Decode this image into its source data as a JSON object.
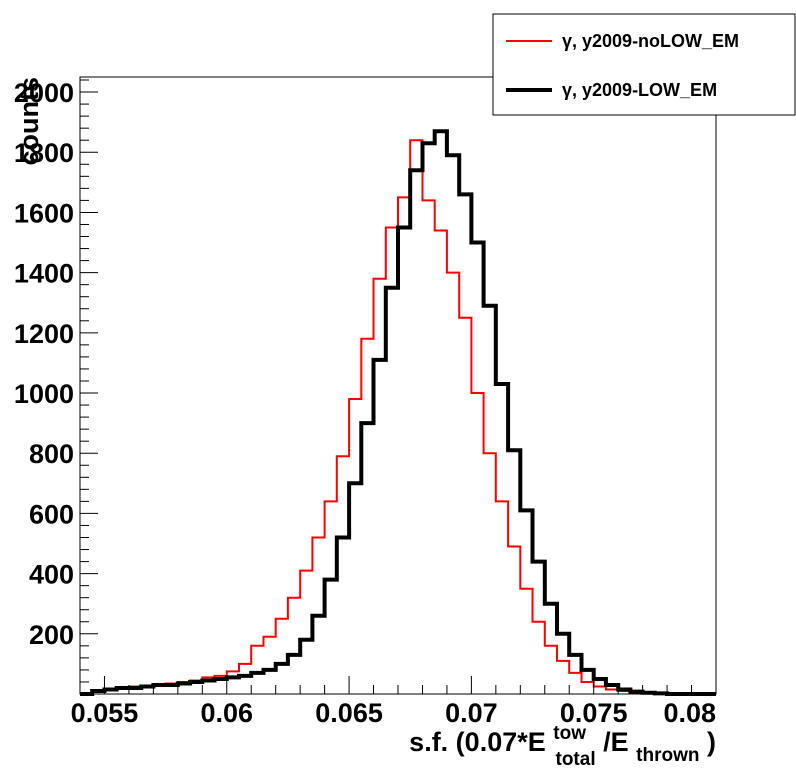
{
  "chart_data": {
    "type": "line",
    "title": "",
    "xlabel": {
      "prefix": "s.f. (0.07*E",
      "sup": "tow",
      "sub": "total",
      "mid": "/E",
      "sub2": "thrown",
      "suffix": ")"
    },
    "ylabel": "counts",
    "xlim": [
      0.054,
      0.08
    ],
    "ylim": [
      0,
      2050
    ],
    "xticks": [
      "0.055",
      "0.06",
      "0.065",
      "0.07",
      "0.075",
      "0.08"
    ],
    "xtick_values": [
      0.055,
      0.06,
      0.065,
      0.07,
      0.075,
      0.08
    ],
    "yticks": [
      "200",
      "400",
      "600",
      "800",
      "1000",
      "1200",
      "1400",
      "1600",
      "1800",
      "2000"
    ],
    "ytick_values": [
      200,
      400,
      600,
      800,
      1000,
      1200,
      1400,
      1600,
      1800,
      2000
    ],
    "grid": false,
    "legend_position": "top-right",
    "histogram": true,
    "series": [
      {
        "name": "γ, y2009-noLOW_EM",
        "color": "#ff0000",
        "x": [
          0.054,
          0.0545,
          0.055,
          0.0555,
          0.056,
          0.0565,
          0.057,
          0.0575,
          0.058,
          0.0585,
          0.059,
          0.0595,
          0.06,
          0.0605,
          0.061,
          0.0615,
          0.062,
          0.0625,
          0.063,
          0.0635,
          0.064,
          0.0645,
          0.065,
          0.0655,
          0.066,
          0.0665,
          0.067,
          0.0675,
          0.068,
          0.0685,
          0.069,
          0.0695,
          0.07,
          0.0705,
          0.071,
          0.0715,
          0.072,
          0.0725,
          0.073,
          0.0735,
          0.074,
          0.0745,
          0.075,
          0.0755,
          0.076,
          0.0765,
          0.077,
          0.0775,
          0.078,
          0.0785,
          0.079,
          0.0795
        ],
        "values": [
          0,
          10,
          15,
          20,
          25,
          25,
          30,
          35,
          40,
          45,
          55,
          60,
          75,
          100,
          160,
          190,
          250,
          320,
          410,
          520,
          640,
          790,
          980,
          1180,
          1380,
          1550,
          1650,
          1840,
          1640,
          1540,
          1400,
          1250,
          1000,
          800,
          640,
          490,
          350,
          240,
          160,
          110,
          70,
          40,
          25,
          15,
          10,
          5,
          3,
          2,
          0,
          0,
          0,
          0
        ]
      },
      {
        "name": "γ, y2009-LOW_EM",
        "color": "#000000",
        "x": [
          0.054,
          0.0545,
          0.055,
          0.0555,
          0.056,
          0.0565,
          0.057,
          0.0575,
          0.058,
          0.0585,
          0.059,
          0.0595,
          0.06,
          0.0605,
          0.061,
          0.0615,
          0.062,
          0.0625,
          0.063,
          0.0635,
          0.064,
          0.0645,
          0.065,
          0.0655,
          0.066,
          0.0665,
          0.067,
          0.0675,
          0.068,
          0.0685,
          0.069,
          0.0695,
          0.07,
          0.0705,
          0.071,
          0.0715,
          0.072,
          0.0725,
          0.073,
          0.0735,
          0.074,
          0.0745,
          0.075,
          0.0755,
          0.076,
          0.0765,
          0.077,
          0.0775,
          0.078,
          0.0785,
          0.079,
          0.0795
        ],
        "values": [
          0,
          10,
          15,
          20,
          20,
          25,
          30,
          30,
          35,
          40,
          45,
          50,
          55,
          60,
          70,
          80,
          100,
          130,
          180,
          260,
          380,
          520,
          700,
          900,
          1110,
          1350,
          1550,
          1740,
          1830,
          1870,
          1790,
          1660,
          1500,
          1290,
          1030,
          810,
          610,
          440,
          300,
          200,
          130,
          80,
          50,
          30,
          15,
          8,
          4,
          2,
          0,
          0,
          0,
          0
        ]
      }
    ]
  }
}
